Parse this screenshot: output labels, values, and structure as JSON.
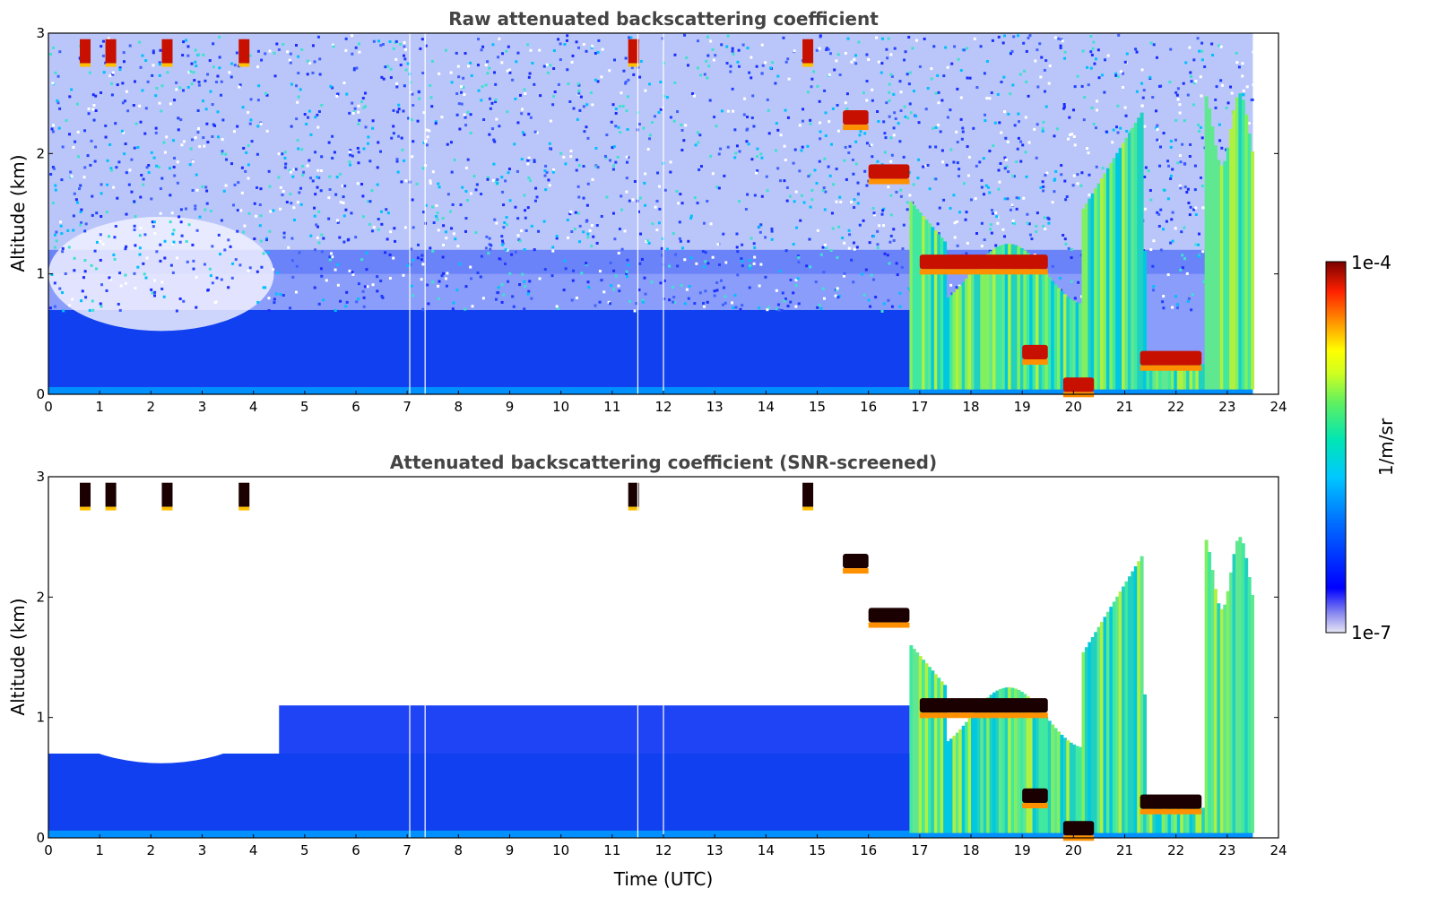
{
  "chart_data": [
    {
      "type": "heatmap",
      "title": "Raw attenuated backscattering coefficient",
      "xlabel": "",
      "ylabel": "Altitude (km)",
      "xlim": [
        0,
        24
      ],
      "ylim": [
        0,
        3
      ],
      "xticks": [
        "0",
        "1",
        "2",
        "3",
        "4",
        "5",
        "6",
        "7",
        "8",
        "9",
        "10",
        "11",
        "12",
        "13",
        "14",
        "15",
        "16",
        "17",
        "18",
        "19",
        "20",
        "21",
        "22",
        "23",
        "24"
      ],
      "yticks": [
        "0",
        "1",
        "2",
        "3"
      ],
      "screened": false,
      "data_end_hour": 23.5
    },
    {
      "type": "heatmap",
      "title": "Attenuated backscattering coefficient (SNR-screened)",
      "xlabel": "Time (UTC)",
      "ylabel": "Altitude (km)",
      "xlim": [
        0,
        24
      ],
      "ylim": [
        0,
        3
      ],
      "xticks": [
        "0",
        "1",
        "2",
        "3",
        "4",
        "5",
        "6",
        "7",
        "8",
        "9",
        "10",
        "11",
        "12",
        "13",
        "14",
        "15",
        "16",
        "17",
        "18",
        "19",
        "20",
        "21",
        "22",
        "23",
        "24"
      ],
      "yticks": [
        "0",
        "1",
        "2",
        "3"
      ],
      "screened": true,
      "data_end_hour": 23.5
    }
  ],
  "colorbar": {
    "label": "1/m/sr",
    "max_label": "1e-4",
    "min_label": "1e-7",
    "scale": "log",
    "colors": [
      "#e6e6f5",
      "#0000ff",
      "#00a0ff",
      "#00e6c8",
      "#80ff40",
      "#ffff00",
      "#ff8000",
      "#e00000",
      "#800000"
    ]
  },
  "features": {
    "cloud_layers_km": [
      {
        "hour_start": 15.5,
        "hour_end": 16.0,
        "altitude": 2.3
      },
      {
        "hour_start": 16.0,
        "hour_end": 16.8,
        "altitude": 1.85
      },
      {
        "hour_start": 17.0,
        "hour_end": 19.5,
        "altitude": 1.1
      },
      {
        "hour_start": 21.3,
        "hour_end": 22.5,
        "altitude": 0.3
      },
      {
        "hour_start": 19.0,
        "hour_end": 19.5,
        "altitude": 0.35
      },
      {
        "hour_start": 19.8,
        "hour_end": 20.4,
        "altitude": 0.08
      }
    ],
    "boundary_layer_top_km": 0.7,
    "high_cloud_hours": [
      0.7,
      1.2,
      2.3,
      3.8,
      11.4,
      14.8
    ]
  }
}
